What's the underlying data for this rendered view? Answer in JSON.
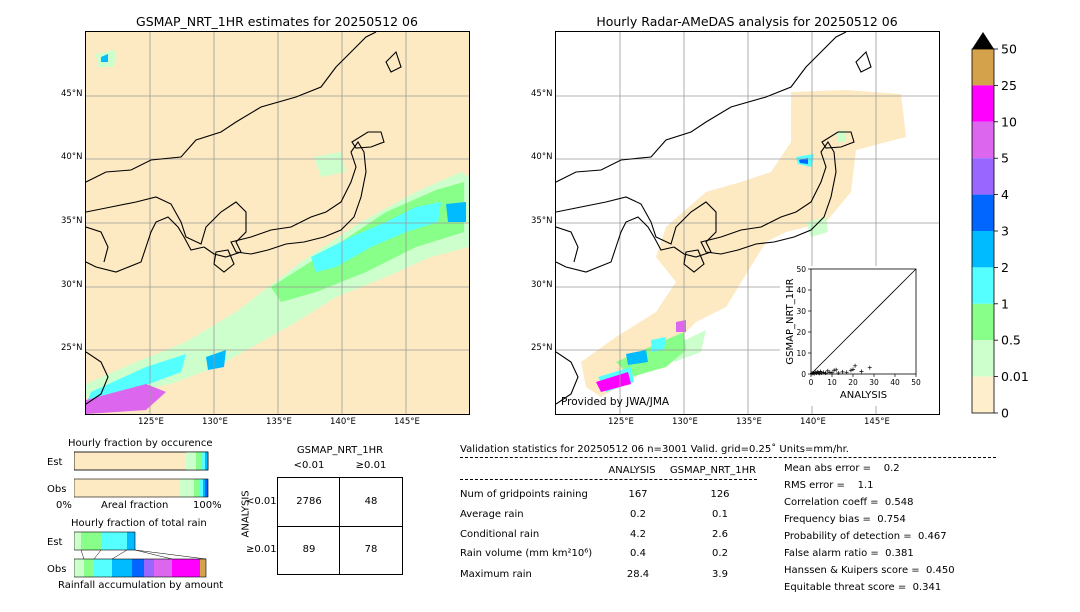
{
  "left_map": {
    "title": "GSMAP_NRT_1HR estimates for 20250512 06",
    "lat_labels": [
      "45°N",
      "40°N",
      "35°N",
      "30°N",
      "25°N"
    ],
    "lon_labels": [
      "125°E",
      "130°E",
      "135°E",
      "140°E",
      "145°E"
    ]
  },
  "right_map": {
    "title": "Hourly Radar-AMeDAS analysis for 20250512 06",
    "lat_labels": [
      "45°N",
      "40°N",
      "35°N",
      "30°N",
      "25°N"
    ],
    "lon_labels": [
      "125°E",
      "130°E",
      "135°E",
      "140°E",
      "145°E"
    ],
    "credit": "Provided by JWA/JMA"
  },
  "colorbar": {
    "labels": [
      "50",
      "25",
      "10",
      "5",
      "4",
      "3",
      "2",
      "1",
      "0.5",
      "0.01",
      "0"
    ],
    "colors": [
      "#d4a24a",
      "#ff00ff",
      "#dd66ee",
      "#9966ff",
      "#0066ff",
      "#00bbff",
      "#55ffff",
      "#88ff88",
      "#ccffcc",
      "#ffeecc"
    ]
  },
  "chart_data": [
    {
      "type": "scatter",
      "title": "",
      "xlabel": "ANALYSIS",
      "ylabel": "GSMAP_NRT_1HR",
      "xlim": [
        0,
        50
      ],
      "ylim": [
        0,
        50
      ],
      "ticks": [
        "0",
        "10",
        "20",
        "30",
        "40",
        "50"
      ],
      "points": [
        [
          0.5,
          0.3
        ],
        [
          1,
          0.5
        ],
        [
          1.5,
          0.2
        ],
        [
          2,
          0.8
        ],
        [
          2.5,
          0.4
        ],
        [
          3,
          1
        ],
        [
          3.5,
          0.6
        ],
        [
          4,
          0.3
        ],
        [
          4.5,
          1.2
        ],
        [
          5,
          0.5
        ],
        [
          6,
          0.8
        ],
        [
          7,
          0.4
        ],
        [
          8,
          1.5
        ],
        [
          9,
          0.7
        ],
        [
          10,
          0.6
        ],
        [
          11,
          1.8
        ],
        [
          12,
          2.0
        ],
        [
          13,
          0.5
        ],
        [
          15,
          1.0
        ],
        [
          17,
          0.8
        ],
        [
          19,
          1.7
        ],
        [
          20,
          2.2
        ],
        [
          21,
          3.9
        ],
        [
          24,
          1.2
        ],
        [
          28,
          3.0
        ]
      ]
    },
    {
      "type": "bar",
      "title": "Hourly fraction by occurence",
      "categories": [
        "Est",
        "Obs"
      ],
      "xlabel": "Areal fraction",
      "x_ticks": [
        "0%",
        "100%"
      ],
      "values": [
        0.16,
        0.21
      ]
    },
    {
      "type": "bar",
      "title": "Hourly fraction of total rain",
      "categories": [
        "Est",
        "Obs"
      ],
      "xlabel": "Rainfall accumulation by amount"
    }
  ],
  "contingency": {
    "title": "GSMAP_NRT_1HR",
    "col_headers": [
      "<0.01",
      "≥0.01"
    ],
    "row_label": "ANALYSIS",
    "row_headers": [
      "<0.01",
      "≥0.01"
    ],
    "cells": [
      [
        "2786",
        "48"
      ],
      [
        "89",
        "78"
      ]
    ]
  },
  "stats": {
    "header": "Validation statistics for 20250512 06  n=3001 Valid. grid=0.25˚ Units=mm/hr.",
    "col_analysis": "ANALYSIS",
    "col_gsmap": "GSMAP_NRT_1HR",
    "rows": [
      {
        "label": "Num of gridpoints raining",
        "a": "167",
        "g": "126"
      },
      {
        "label": "Average rain",
        "a": "0.2",
        "g": "0.1"
      },
      {
        "label": "Conditional rain",
        "a": "4.2",
        "g": "2.6"
      },
      {
        "label": "Rain volume (mm km²10⁶)",
        "a": "0.4",
        "g": "0.2"
      },
      {
        "label": "Maximum rain",
        "a": "28.4",
        "g": "3.9"
      }
    ],
    "scores": [
      "Mean abs error =    0.2",
      "RMS error =    1.1",
      "Correlation coeff =  0.548",
      "Frequency bias =  0.754",
      "Probability of detection =  0.467",
      "False alarm ratio =  0.381",
      "Hanssen & Kuipers score =  0.450",
      "Equitable threat score =  0.341"
    ]
  }
}
